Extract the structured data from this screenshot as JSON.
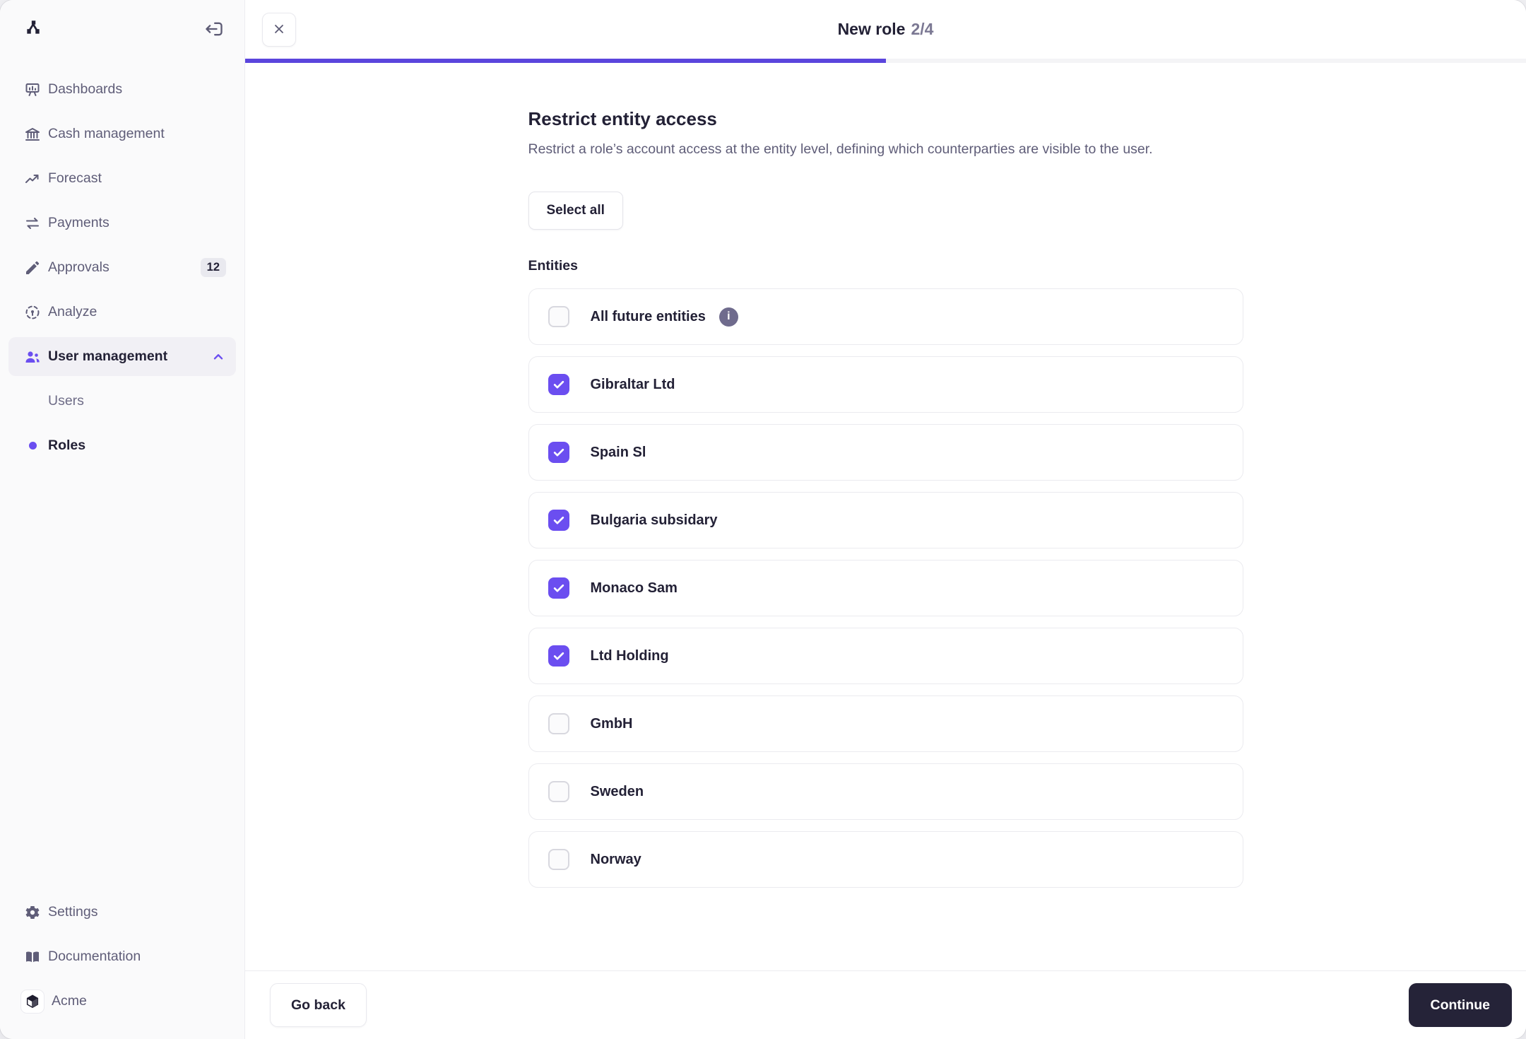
{
  "window": {
    "title": "New role",
    "step": "2/4",
    "progress_percent": 50
  },
  "sidebar": {
    "logo_icon": "tree-hierarchy-logo",
    "collapse_icon": "collapse-sidebar-icon",
    "items": [
      {
        "label": "Dashboards",
        "icon": "dashboards-icon"
      },
      {
        "label": "Cash management",
        "icon": "bank-icon"
      },
      {
        "label": "Forecast",
        "icon": "trending-up-icon"
      },
      {
        "label": "Payments",
        "icon": "transfer-arrows-icon"
      },
      {
        "label": "Approvals",
        "icon": "pencil-icon",
        "badge": "12"
      },
      {
        "label": "Analyze",
        "icon": "dashed-scan-icon"
      },
      {
        "label": "User management",
        "icon": "users-icon",
        "active": true,
        "chevron": "chevron-up-icon"
      }
    ],
    "sub_items": [
      {
        "label": "Users",
        "active": false
      },
      {
        "label": "Roles",
        "active": true,
        "bullet": "active-dot"
      }
    ],
    "bottom_items": [
      {
        "label": "Settings",
        "icon": "gear-icon"
      },
      {
        "label": "Documentation",
        "icon": "book-icon"
      },
      {
        "label": "Acme",
        "icon": "cube-logo-icon"
      }
    ]
  },
  "main": {
    "heading": "Restrict entity access",
    "subheading": "Restrict a role’s account access at the entity level, defining which counterparties are visible to the user.",
    "select_all_label": "Select all",
    "entities_label": "Entities",
    "info_icon_glyph": "i",
    "entities": [
      {
        "label": "All future entities",
        "checked": false,
        "info": true
      },
      {
        "label": "Gibraltar Ltd",
        "checked": true
      },
      {
        "label": "Spain Sl",
        "checked": true
      },
      {
        "label": "Bulgaria subsidary",
        "checked": true
      },
      {
        "label": "Monaco Sam",
        "checked": true
      },
      {
        "label": "Ltd Holding",
        "checked": true
      },
      {
        "label": "GmbH",
        "checked": false
      },
      {
        "label": "Sweden",
        "checked": false
      },
      {
        "label": "Norway",
        "checked": false
      }
    ],
    "footer": {
      "back_label": "Go back",
      "continue_label": "Continue"
    }
  },
  "colors": {
    "accent_purple": "#6b4ef0",
    "progress_purple": "#5b45dd",
    "dark_navy": "#232136",
    "continue_bg": "#252338",
    "muted_text": "#5f5d78",
    "sidebar_bg": "#fafafb",
    "active_item_bg": "#f1f0f5",
    "card_border": "#ebebef"
  }
}
